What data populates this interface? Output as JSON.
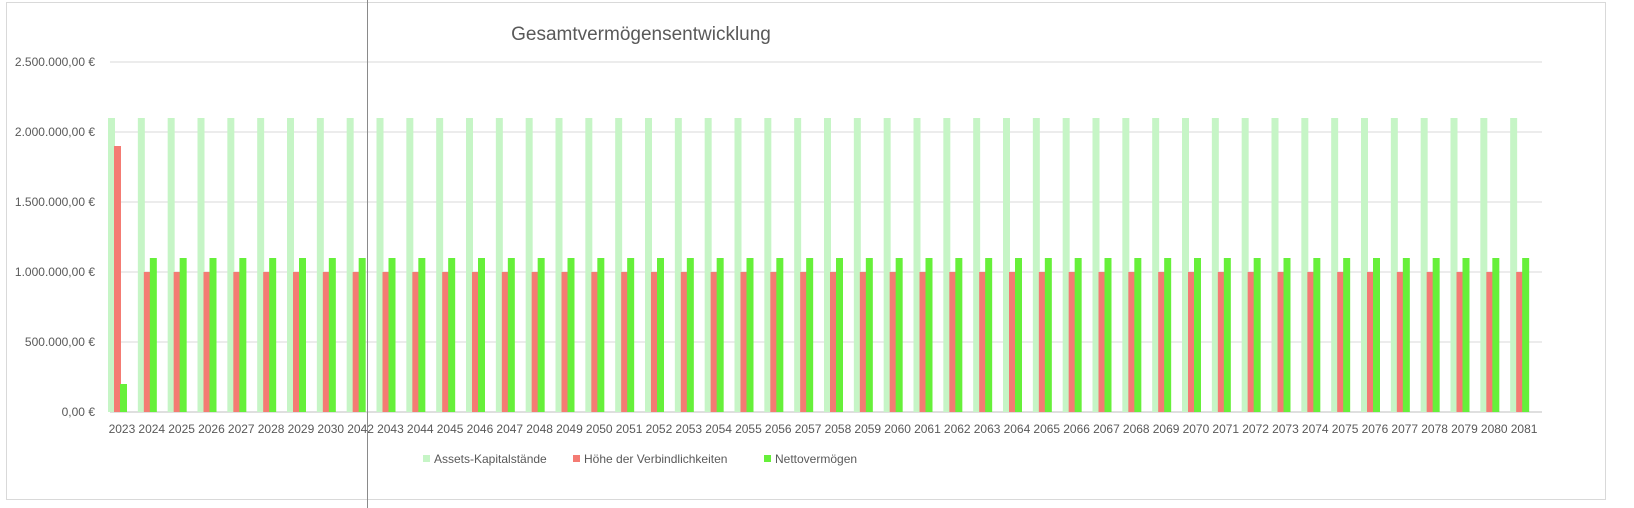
{
  "chart_data": {
    "type": "bar",
    "title": "Gesamtvermögensentwicklung",
    "xlabel": "",
    "ylabel": "",
    "ylim": [
      0,
      2500000
    ],
    "grid": true,
    "legend_position": "bottom",
    "y_ticks": [
      {
        "value": 0,
        "label": "0,00 €"
      },
      {
        "value": 500000,
        "label": "500.000,00 €"
      },
      {
        "value": 1000000,
        "label": "1.000.000,00 €"
      },
      {
        "value": 1500000,
        "label": "1.500.000,00 €"
      },
      {
        "value": 2000000,
        "label": "2.000.000,00 €"
      },
      {
        "value": 2500000,
        "label": "2.500.000,00 €"
      }
    ],
    "categories": [
      "2023",
      "2024",
      "2025",
      "2026",
      "2027",
      "2028",
      "2029",
      "2030",
      "2042",
      "2043",
      "2044",
      "2045",
      "2046",
      "2047",
      "2048",
      "2049",
      "2050",
      "2051",
      "2052",
      "2053",
      "2054",
      "2055",
      "2056",
      "2057",
      "2058",
      "2059",
      "2060",
      "2061",
      "2062",
      "2063",
      "2064",
      "2065",
      "2066",
      "2067",
      "2068",
      "2069",
      "2070",
      "2071",
      "2072",
      "2073",
      "2074",
      "2075",
      "2076",
      "2077",
      "2078",
      "2079",
      "2080",
      "2081"
    ],
    "series": [
      {
        "name": "Assets-Kapitalstände",
        "color": "#c6f5c6",
        "values": [
          2100000,
          2100000,
          2100000,
          2100000,
          2100000,
          2100000,
          2100000,
          2100000,
          2100000,
          2100000,
          2100000,
          2100000,
          2100000,
          2100000,
          2100000,
          2100000,
          2100000,
          2100000,
          2100000,
          2100000,
          2100000,
          2100000,
          2100000,
          2100000,
          2100000,
          2100000,
          2100000,
          2100000,
          2100000,
          2100000,
          2100000,
          2100000,
          2100000,
          2100000,
          2100000,
          2100000,
          2100000,
          2100000,
          2100000,
          2100000,
          2100000,
          2100000,
          2100000,
          2100000,
          2100000,
          2100000,
          2100000,
          2100000
        ]
      },
      {
        "name": "Höhe der Verbindlichkeiten",
        "color": "#f47b73",
        "values": [
          1900000,
          1000000,
          1000000,
          1000000,
          1000000,
          1000000,
          1000000,
          1000000,
          1000000,
          1000000,
          1000000,
          1000000,
          1000000,
          1000000,
          1000000,
          1000000,
          1000000,
          1000000,
          1000000,
          1000000,
          1000000,
          1000000,
          1000000,
          1000000,
          1000000,
          1000000,
          1000000,
          1000000,
          1000000,
          1000000,
          1000000,
          1000000,
          1000000,
          1000000,
          1000000,
          1000000,
          1000000,
          1000000,
          1000000,
          1000000,
          1000000,
          1000000,
          1000000,
          1000000,
          1000000,
          1000000,
          1000000,
          1000000
        ]
      },
      {
        "name": "Nettovermögen",
        "color": "#66f03a",
        "values": [
          200000,
          1100000,
          1100000,
          1100000,
          1100000,
          1100000,
          1100000,
          1100000,
          1100000,
          1100000,
          1100000,
          1100000,
          1100000,
          1100000,
          1100000,
          1100000,
          1100000,
          1100000,
          1100000,
          1100000,
          1100000,
          1100000,
          1100000,
          1100000,
          1100000,
          1100000,
          1100000,
          1100000,
          1100000,
          1100000,
          1100000,
          1100000,
          1100000,
          1100000,
          1100000,
          1100000,
          1100000,
          1100000,
          1100000,
          1100000,
          1100000,
          1100000,
          1100000,
          1100000,
          1100000,
          1100000,
          1100000,
          1100000
        ]
      }
    ]
  }
}
